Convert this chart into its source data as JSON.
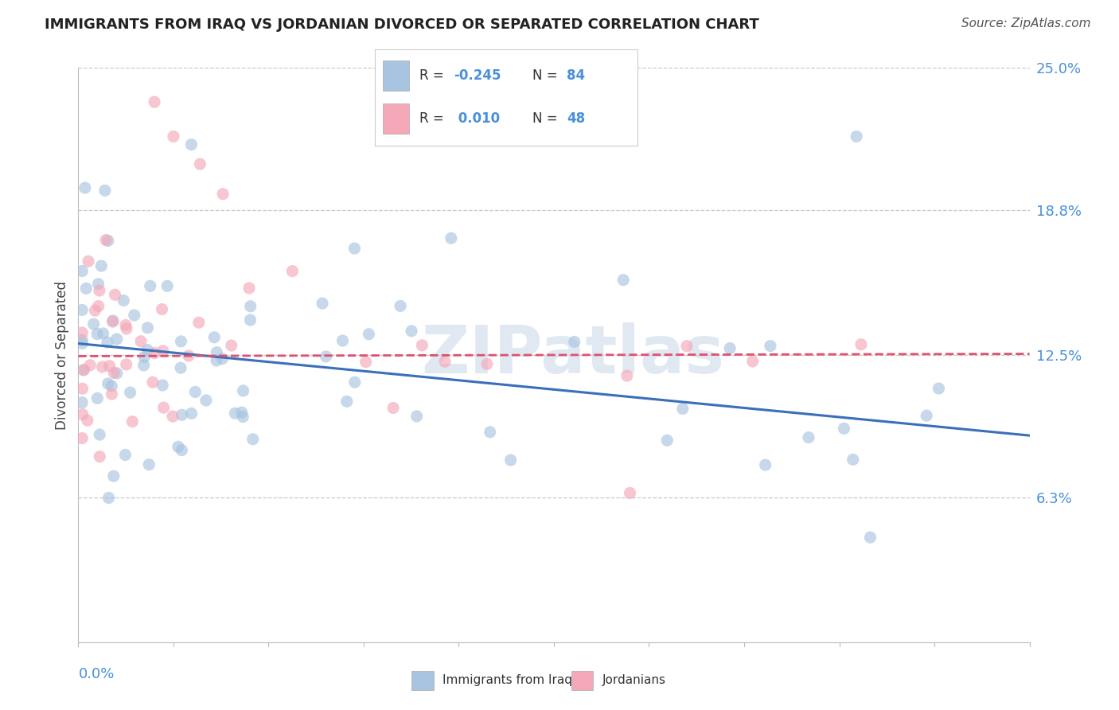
{
  "title": "IMMIGRANTS FROM IRAQ VS JORDANIAN DIVORCED OR SEPARATED CORRELATION CHART",
  "source": "Source: ZipAtlas.com",
  "ylabel": "Divorced or Separated",
  "xlabel_bottom": "Immigrants from Iraq",
  "xmin": 0.0,
  "xmax": 0.25,
  "ymin": 0.0,
  "ymax": 0.25,
  "yticks": [
    0.063,
    0.125,
    0.188,
    0.25
  ],
  "ytick_labels": [
    "6.3%",
    "12.5%",
    "18.8%",
    "25.0%"
  ],
  "blue_color": "#a8c4e0",
  "pink_color": "#f4a8b8",
  "blue_line_color": "#3a6fbb",
  "pink_line_color": "#e05070",
  "legend_label_blue": "Immigrants from Iraq",
  "legend_label_pink": "Jordanians",
  "blue_R": "-0.245",
  "blue_N": "84",
  "pink_R": "0.010",
  "pink_N": "48",
  "blue_line_x0": 0.0,
  "blue_line_y0": 0.13,
  "blue_line_x1": 0.25,
  "blue_line_y1": 0.09,
  "pink_line_x0": 0.0,
  "pink_line_y0": 0.1245,
  "pink_line_x1": 0.25,
  "pink_line_y1": 0.1255
}
